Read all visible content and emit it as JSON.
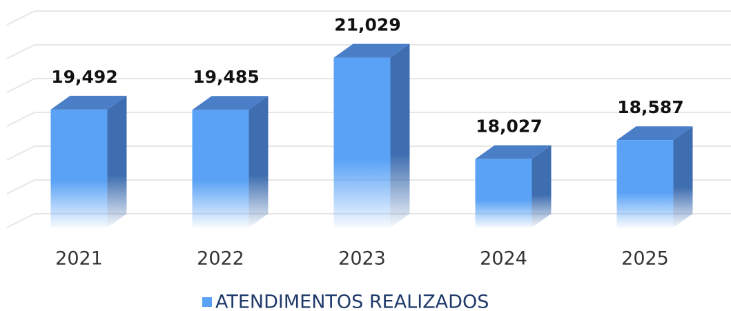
{
  "chart_data": {
    "type": "bar3d",
    "categories": [
      "2021",
      "2022",
      "2023",
      "2024",
      "2025"
    ],
    "series": [
      {
        "name": "ATENDIMENTOS REALIZADOS",
        "color": "#5aa2f6",
        "values": [
          19492,
          19485,
          21029,
          18027,
          18587
        ],
        "value_labels": [
          "19,492",
          "19,485",
          "21,029",
          "18,027",
          "18,587"
        ]
      }
    ],
    "ylim": [
      16000,
      22000
    ],
    "yticks": [
      16000,
      17000,
      18000,
      19000,
      20000,
      21000,
      22000
    ],
    "grid": true,
    "legend": "bottom"
  }
}
